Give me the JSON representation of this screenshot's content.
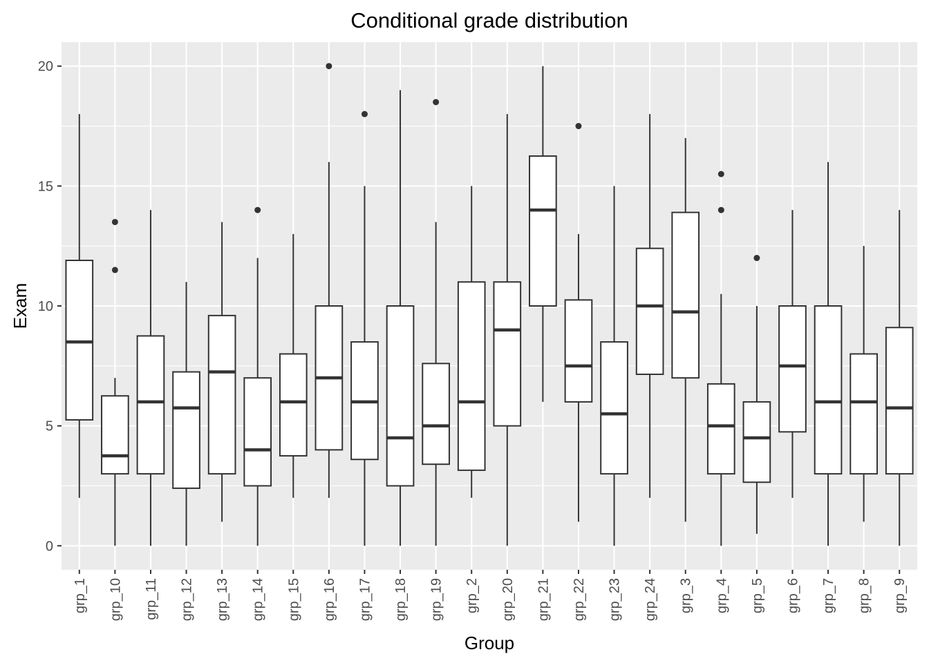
{
  "chart_data": {
    "type": "boxplot",
    "title": "Conditional grade distribution",
    "xlabel": "Group",
    "ylabel": "Exam",
    "ylim": [
      -1,
      21
    ],
    "y_ticks": [
      0,
      5,
      10,
      15,
      20
    ],
    "y_tick_labels": [
      "0",
      "5",
      "10",
      "15",
      "20"
    ],
    "grid": true,
    "colors": {
      "panel_background": "#ebebeb",
      "grid": "#ffffff",
      "box_fill": "#ffffff",
      "box_stroke": "#333333",
      "outlier": "#333333"
    },
    "categories": [
      "grp_1",
      "grp_10",
      "grp_11",
      "grp_12",
      "grp_13",
      "grp_14",
      "grp_15",
      "grp_16",
      "grp_17",
      "grp_18",
      "grp_19",
      "grp_2",
      "grp_20",
      "grp_21",
      "grp_22",
      "grp_23",
      "grp_24",
      "grp_3",
      "grp_4",
      "grp_5",
      "grp_6",
      "grp_7",
      "grp_8",
      "grp_9"
    ],
    "boxes": [
      {
        "min": 2,
        "q1": 5.25,
        "median": 8.5,
        "q3": 11.9,
        "max": 18,
        "outliers": []
      },
      {
        "min": 0,
        "q1": 3,
        "median": 3.75,
        "q3": 6.25,
        "max": 7,
        "outliers": [
          11.5,
          13.5
        ]
      },
      {
        "min": 0,
        "q1": 3,
        "median": 6,
        "q3": 8.75,
        "max": 14,
        "outliers": []
      },
      {
        "min": 0,
        "q1": 2.4,
        "median": 5.75,
        "q3": 7.25,
        "max": 11,
        "outliers": []
      },
      {
        "min": 1,
        "q1": 3,
        "median": 7.25,
        "q3": 9.6,
        "max": 13.5,
        "outliers": []
      },
      {
        "min": 0,
        "q1": 2.5,
        "median": 4,
        "q3": 7,
        "max": 12,
        "outliers": [
          14
        ]
      },
      {
        "min": 2,
        "q1": 3.75,
        "median": 6,
        "q3": 8,
        "max": 13,
        "outliers": []
      },
      {
        "min": 2,
        "q1": 4,
        "median": 7,
        "q3": 10,
        "max": 16,
        "outliers": [
          20
        ]
      },
      {
        "min": 0,
        "q1": 3.6,
        "median": 6,
        "q3": 8.5,
        "max": 15,
        "outliers": [
          18
        ]
      },
      {
        "min": 0,
        "q1": 2.5,
        "median": 4.5,
        "q3": 10,
        "max": 19,
        "outliers": []
      },
      {
        "min": 0,
        "q1": 3.4,
        "median": 5,
        "q3": 7.6,
        "max": 13.5,
        "outliers": [
          18.5
        ]
      },
      {
        "min": 2,
        "q1": 3.15,
        "median": 6,
        "q3": 11,
        "max": 15,
        "outliers": []
      },
      {
        "min": 0,
        "q1": 5,
        "median": 9,
        "q3": 11,
        "max": 18,
        "outliers": []
      },
      {
        "min": 6,
        "q1": 10,
        "median": 14,
        "q3": 16.25,
        "max": 20,
        "outliers": []
      },
      {
        "min": 1,
        "q1": 6,
        "median": 7.5,
        "q3": 10.25,
        "max": 13,
        "outliers": [
          17.5
        ]
      },
      {
        "min": 0,
        "q1": 3,
        "median": 5.5,
        "q3": 8.5,
        "max": 15,
        "outliers": []
      },
      {
        "min": 2,
        "q1": 7.15,
        "median": 10,
        "q3": 12.4,
        "max": 18,
        "outliers": []
      },
      {
        "min": 1,
        "q1": 7,
        "median": 9.75,
        "q3": 13.9,
        "max": 17,
        "outliers": []
      },
      {
        "min": 0,
        "q1": 3,
        "median": 5,
        "q3": 6.75,
        "max": 10.5,
        "outliers": [
          14,
          15.5
        ]
      },
      {
        "min": 0.5,
        "q1": 2.65,
        "median": 4.5,
        "q3": 6,
        "max": 10,
        "outliers": [
          12
        ]
      },
      {
        "min": 2,
        "q1": 4.75,
        "median": 7.5,
        "q3": 10,
        "max": 14,
        "outliers": []
      },
      {
        "min": 0,
        "q1": 3,
        "median": 6,
        "q3": 10,
        "max": 16,
        "outliers": []
      },
      {
        "min": 1,
        "q1": 3,
        "median": 6,
        "q3": 8,
        "max": 12.5,
        "outliers": []
      },
      {
        "min": 0,
        "q1": 3,
        "median": 5.75,
        "q3": 9.1,
        "max": 14,
        "outliers": []
      }
    ]
  }
}
